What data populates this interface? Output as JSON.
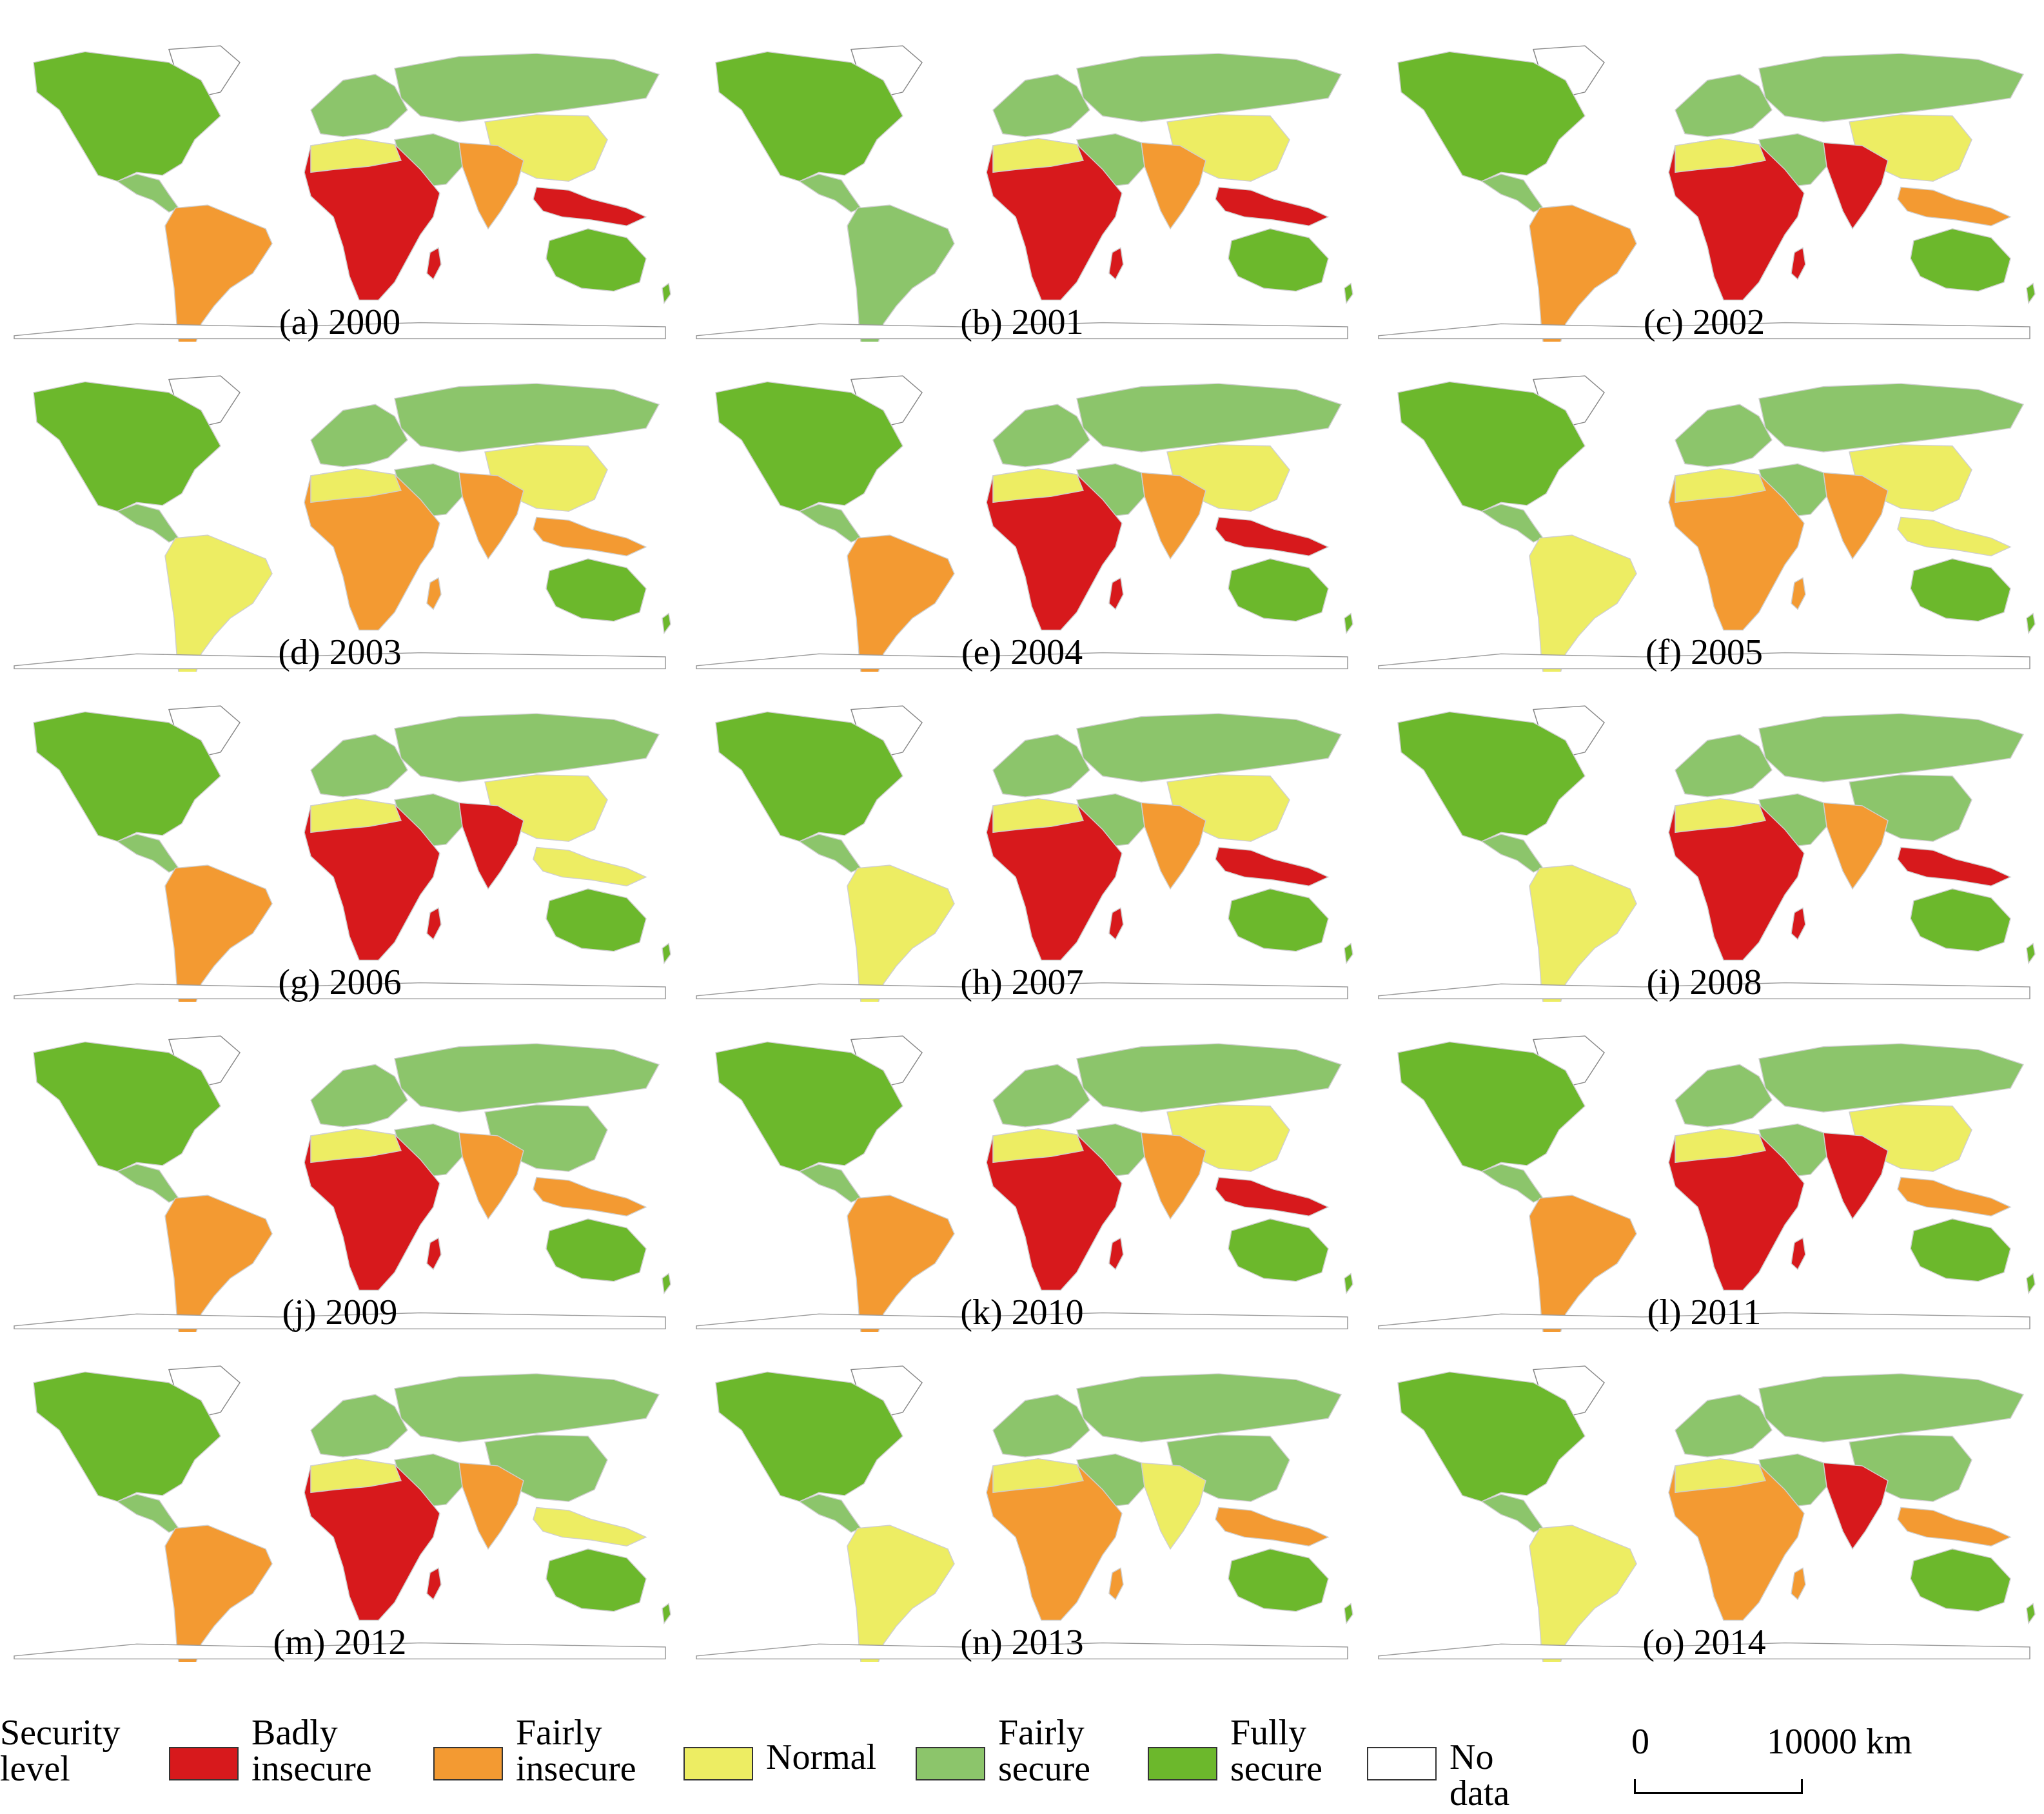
{
  "colors": {
    "badly_insecure": "#d7191c",
    "fairly_insecure": "#f39a32",
    "normal": "#eded63",
    "fairly_secure": "#8cc56b",
    "fully_secure": "#6cb82c",
    "no_data": "#ffffff"
  },
  "panels": [
    {
      "label": "(a) 2000",
      "africa": "badly_insecure",
      "south_asia": "fairly_insecure",
      "se_asia": "badly_insecure",
      "south_america": "fairly_insecure",
      "china": "normal"
    },
    {
      "label": "(b) 2001",
      "africa": "badly_insecure",
      "south_asia": "fairly_insecure",
      "se_asia": "badly_insecure",
      "south_america": "fairly_secure",
      "china": "normal"
    },
    {
      "label": "(c) 2002",
      "africa": "badly_insecure",
      "south_asia": "badly_insecure",
      "se_asia": "fairly_insecure",
      "south_america": "fairly_insecure",
      "china": "normal"
    },
    {
      "label": "(d) 2003",
      "africa": "fairly_insecure",
      "south_asia": "fairly_insecure",
      "se_asia": "fairly_insecure",
      "south_america": "normal",
      "china": "normal"
    },
    {
      "label": "(e) 2004",
      "africa": "badly_insecure",
      "south_asia": "fairly_insecure",
      "se_asia": "badly_insecure",
      "south_america": "fairly_insecure",
      "china": "normal"
    },
    {
      "label": "(f) 2005",
      "africa": "fairly_insecure",
      "south_asia": "fairly_insecure",
      "se_asia": "normal",
      "south_america": "normal",
      "china": "normal"
    },
    {
      "label": "(g) 2006",
      "africa": "badly_insecure",
      "south_asia": "badly_insecure",
      "se_asia": "normal",
      "south_america": "fairly_insecure",
      "china": "normal"
    },
    {
      "label": "(h) 2007",
      "africa": "badly_insecure",
      "south_asia": "fairly_insecure",
      "se_asia": "badly_insecure",
      "south_america": "normal",
      "china": "normal"
    },
    {
      "label": "(i) 2008",
      "africa": "badly_insecure",
      "south_asia": "fairly_insecure",
      "se_asia": "badly_insecure",
      "south_america": "normal",
      "china": "fairly_secure"
    },
    {
      "label": "(j) 2009",
      "africa": "badly_insecure",
      "south_asia": "fairly_insecure",
      "se_asia": "fairly_insecure",
      "south_america": "fairly_insecure",
      "china": "fairly_secure"
    },
    {
      "label": "(k) 2010",
      "africa": "badly_insecure",
      "south_asia": "fairly_insecure",
      "se_asia": "badly_insecure",
      "south_america": "fairly_insecure",
      "china": "normal"
    },
    {
      "label": "(l) 2011",
      "africa": "badly_insecure",
      "south_asia": "badly_insecure",
      "se_asia": "fairly_insecure",
      "south_america": "fairly_insecure",
      "china": "normal"
    },
    {
      "label": "(m) 2012",
      "africa": "badly_insecure",
      "south_asia": "fairly_insecure",
      "se_asia": "normal",
      "south_america": "fairly_insecure",
      "china": "fairly_secure"
    },
    {
      "label": "(n) 2013",
      "africa": "fairly_insecure",
      "south_asia": "normal",
      "se_asia": "fairly_insecure",
      "south_america": "normal",
      "china": "fairly_secure"
    },
    {
      "label": "(o) 2014",
      "africa": "fairly_insecure",
      "south_asia": "badly_insecure",
      "se_asia": "fairly_insecure",
      "south_america": "normal",
      "china": "fairly_secure"
    }
  ],
  "legend": {
    "title": "Security\nlevel",
    "items": [
      {
        "key": "badly_insecure",
        "label": "Badly\ninsecure"
      },
      {
        "key": "fairly_insecure",
        "label": "Fairly\ninsecure"
      },
      {
        "key": "normal",
        "label": "Normal"
      },
      {
        "key": "fairly_secure",
        "label": "Fairly\nsecure"
      },
      {
        "key": "fully_secure",
        "label": "Fully\nsecure"
      },
      {
        "key": "no_data",
        "label": "No data"
      }
    ]
  },
  "scale_bar": {
    "start_label": "0",
    "end_label": "10000 km"
  }
}
